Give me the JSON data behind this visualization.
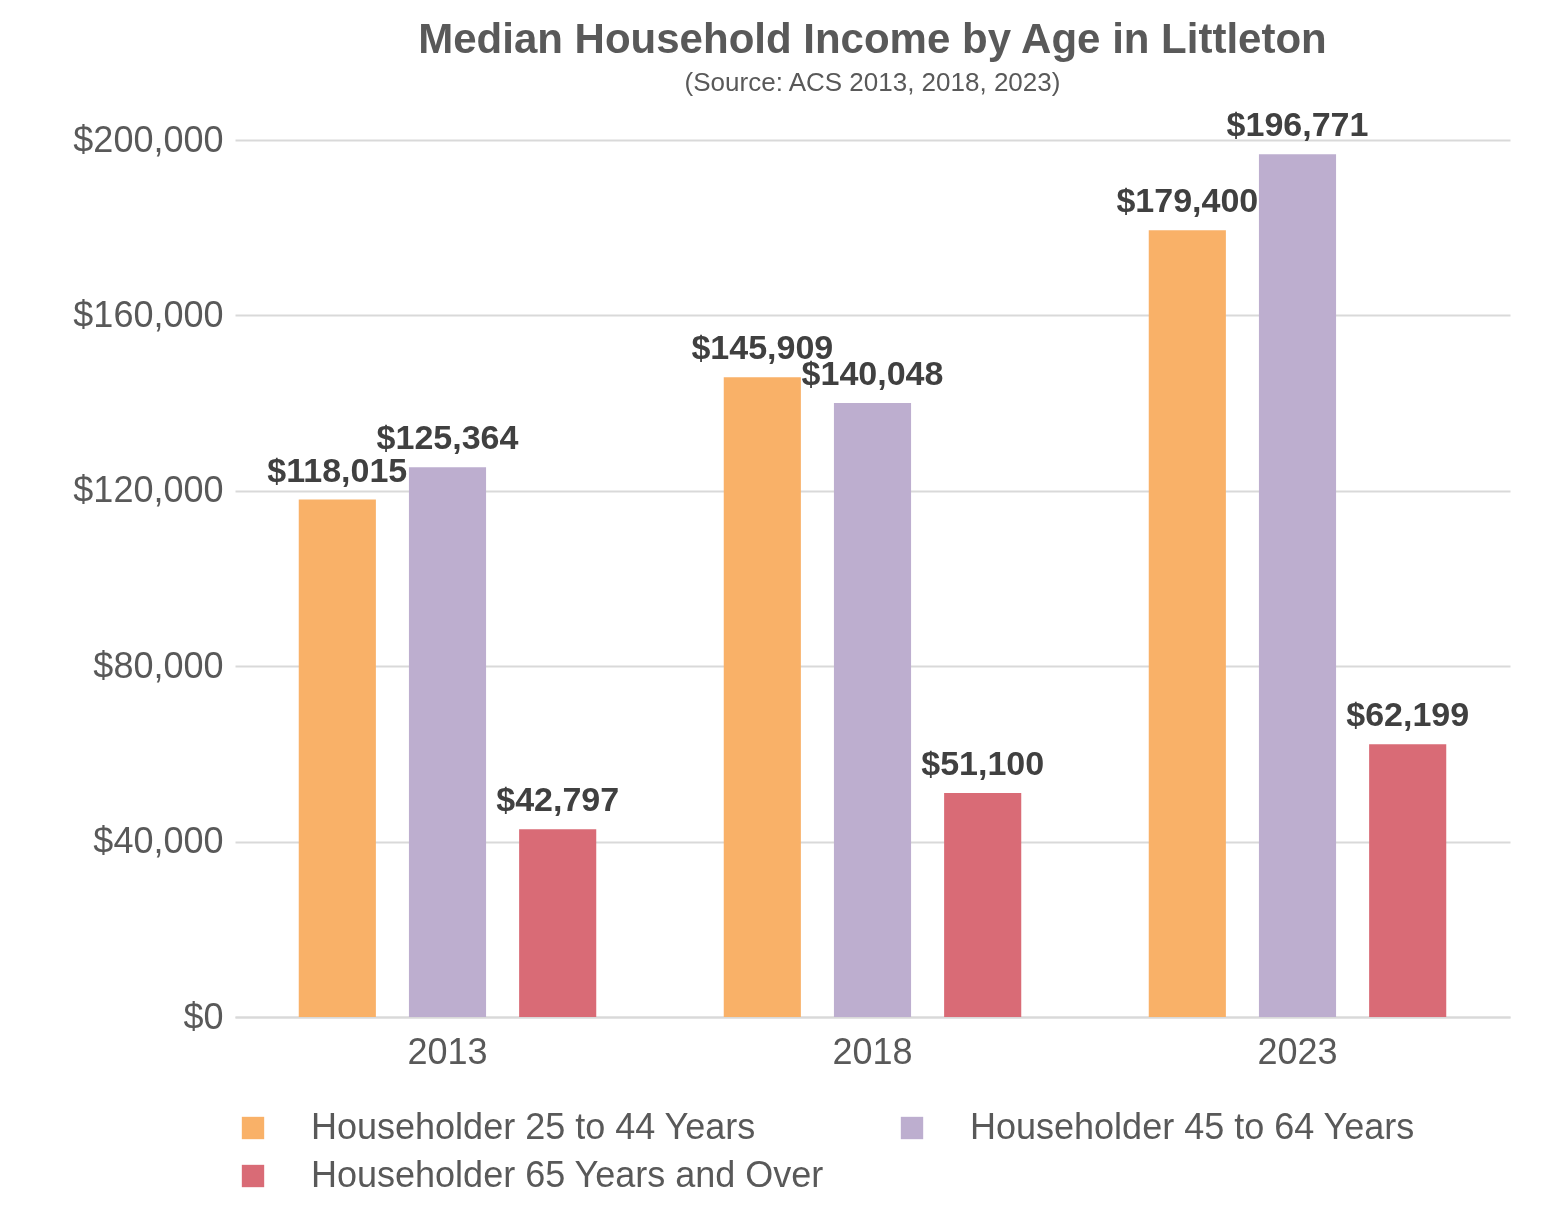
{
  "chart_data": {
    "type": "bar",
    "title": "Median Household Income by Age in Littleton",
    "subtitle": "(Source: ACS 2013, 2018, 2023)",
    "categories": [
      "2013",
      "2018",
      "2023"
    ],
    "series": [
      {
        "name": "Householder 25 to 44 Years",
        "color": "#f9b168",
        "values": [
          118015,
          145909,
          179400
        ],
        "value_labels": [
          "$118,015",
          "$145,909",
          "$179,400"
        ]
      },
      {
        "name": "Householder 45 to 64 Years",
        "color": "#bdaecf",
        "values": [
          125364,
          140048,
          196771
        ],
        "value_labels": [
          "$125,364",
          "$140,048",
          "$196,771"
        ]
      },
      {
        "name": "Householder 65 Years and Over",
        "color": "#d96b76",
        "values": [
          42797,
          51100,
          62199
        ],
        "value_labels": [
          "$42,797",
          "$51,100",
          "$62,199"
        ]
      }
    ],
    "ylim": [
      0,
      200000
    ],
    "yticks": [
      {
        "value": 0,
        "label": "$0"
      },
      {
        "value": 40000,
        "label": "$40,000"
      },
      {
        "value": 80000,
        "label": "$80,000"
      },
      {
        "value": 120000,
        "label": "$120,000"
      },
      {
        "value": 160000,
        "label": "$160,000"
      },
      {
        "value": 200000,
        "label": "$200,000"
      }
    ],
    "grid": "y",
    "legend": "bottom"
  }
}
